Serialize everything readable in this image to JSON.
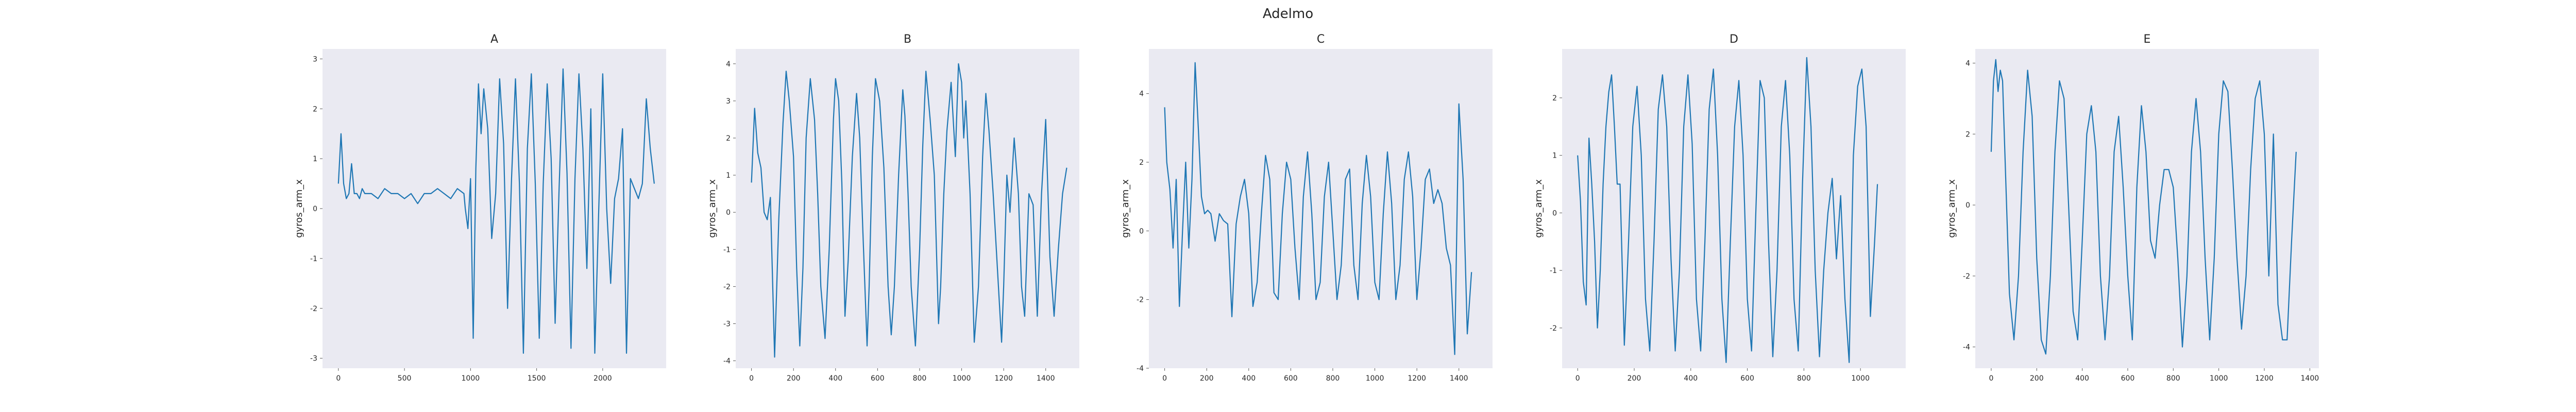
{
  "figure": {
    "suptitle": "Adelmo"
  },
  "chart_data": [
    {
      "type": "line",
      "title": "A",
      "xlabel": "",
      "ylabel": "gyros_arm_x",
      "xlim": [
        -120,
        2480
      ],
      "ylim": [
        -3.2,
        3.2
      ],
      "xticks": [
        0,
        500,
        1000,
        1500,
        2000
      ],
      "yticks": [
        -3,
        -2,
        -1,
        0,
        1,
        2,
        3
      ],
      "grid": false,
      "series": [
        {
          "color": "#1f77b4",
          "x": [
            0,
            20,
            40,
            60,
            80,
            100,
            120,
            140,
            160,
            180,
            200,
            250,
            300,
            350,
            400,
            450,
            500,
            550,
            600,
            650,
            700,
            750,
            800,
            850,
            900,
            950,
            960,
            980,
            1000,
            1020,
            1040,
            1060,
            1080,
            1100,
            1130,
            1160,
            1190,
            1220,
            1250,
            1280,
            1310,
            1340,
            1370,
            1400,
            1430,
            1460,
            1490,
            1520,
            1550,
            1580,
            1610,
            1640,
            1670,
            1700,
            1730,
            1760,
            1790,
            1820,
            1850,
            1880,
            1910,
            1940,
            1970,
            2000,
            2030,
            2060,
            2090,
            2120,
            2150,
            2180,
            2210,
            2240,
            2270,
            2300,
            2330,
            2360,
            2390
          ],
          "y": [
            0.5,
            1.5,
            0.5,
            0.2,
            0.3,
            0.9,
            0.3,
            0.3,
            0.2,
            0.4,
            0.3,
            0.3,
            0.2,
            0.4,
            0.3,
            0.3,
            0.2,
            0.3,
            0.1,
            0.3,
            0.3,
            0.4,
            0.3,
            0.2,
            0.4,
            0.3,
            0.0,
            -0.4,
            0.6,
            -2.6,
            0.8,
            2.5,
            1.5,
            2.4,
            1.6,
            -0.6,
            0.3,
            2.6,
            1.3,
            -2.0,
            0.6,
            2.6,
            0.5,
            -2.9,
            1.2,
            2.7,
            0.5,
            -2.6,
            0.5,
            2.5,
            1.0,
            -2.3,
            0.4,
            2.8,
            0.7,
            -2.8,
            0.6,
            2.7,
            1.2,
            -1.2,
            2.0,
            -2.9,
            0.0,
            2.7,
            0.0,
            -1.5,
            0.2,
            0.6,
            1.6,
            -2.9,
            0.6,
            0.4,
            0.2,
            0.5,
            2.2,
            1.2,
            0.5
          ]
        }
      ]
    },
    {
      "type": "line",
      "title": "B",
      "xlabel": "",
      "ylabel": "gyros_arm_x",
      "xlim": [
        -75,
        1560
      ],
      "ylim": [
        -4.2,
        4.4
      ],
      "xticks": [
        0,
        200,
        400,
        600,
        800,
        1000,
        1200,
        1400
      ],
      "yticks": [
        -4,
        -3,
        -2,
        -1,
        0,
        1,
        2,
        3,
        4
      ],
      "grid": false,
      "series": [
        {
          "color": "#1f77b4",
          "x": [
            0,
            15,
            30,
            45,
            60,
            75,
            90,
            110,
            130,
            150,
            165,
            180,
            200,
            215,
            230,
            245,
            260,
            280,
            300,
            315,
            330,
            350,
            370,
            390,
            400,
            415,
            430,
            445,
            460,
            480,
            500,
            515,
            530,
            550,
            560,
            575,
            590,
            610,
            630,
            650,
            665,
            680,
            700,
            720,
            730,
            745,
            760,
            780,
            800,
            815,
            830,
            850,
            870,
            890,
            900,
            915,
            930,
            950,
            970,
            985,
            1000,
            1010,
            1020,
            1040,
            1060,
            1080,
            1100,
            1115,
            1130,
            1150,
            1170,
            1190,
            1200,
            1215,
            1230,
            1250,
            1270,
            1285,
            1300,
            1320,
            1340,
            1360,
            1380,
            1400,
            1420,
            1440,
            1460,
            1480,
            1500
          ],
          "y": [
            0.8,
            2.8,
            1.6,
            1.2,
            0.0,
            -0.2,
            0.4,
            -3.9,
            -0.2,
            2.4,
            3.8,
            3.0,
            1.5,
            -1.5,
            -3.6,
            -1.5,
            2.0,
            3.6,
            2.5,
            0.5,
            -2.0,
            -3.4,
            -1.0,
            2.5,
            3.6,
            3.0,
            0.8,
            -2.8,
            -1.3,
            1.5,
            3.2,
            2.0,
            -0.5,
            -3.6,
            -2.0,
            1.5,
            3.6,
            3.0,
            1.2,
            -2.0,
            -3.3,
            -2.0,
            1.0,
            3.3,
            2.6,
            0.5,
            -2.0,
            -3.6,
            -1.0,
            1.8,
            3.8,
            2.5,
            1.0,
            -3.0,
            -2.0,
            0.5,
            2.2,
            3.5,
            1.5,
            4.0,
            3.5,
            2.0,
            3.0,
            0.5,
            -3.5,
            -2.0,
            1.5,
            3.2,
            2.2,
            0.5,
            -1.5,
            -3.5,
            -2.0,
            1.0,
            0.0,
            2.0,
            0.5,
            -2.0,
            -2.8,
            0.5,
            0.2,
            -2.8,
            0.5,
            2.5,
            -1.2,
            -2.8,
            -1.0,
            0.5,
            1.2
          ]
        }
      ]
    },
    {
      "type": "line",
      "title": "C",
      "xlabel": "",
      "ylabel": "gyros_arm_x",
      "xlim": [
        -75,
        1560
      ],
      "ylim": [
        -4.0,
        5.3
      ],
      "xticks": [
        0,
        200,
        400,
        600,
        800,
        1000,
        1200,
        1400
      ],
      "yticks": [
        -4,
        -2,
        0,
        2,
        4
      ],
      "grid": false,
      "series": [
        {
          "color": "#1f77b4",
          "x": [
            0,
            10,
            25,
            40,
            55,
            70,
            85,
            100,
            115,
            130,
            145,
            160,
            175,
            190,
            205,
            220,
            240,
            260,
            280,
            300,
            320,
            340,
            360,
            380,
            400,
            420,
            440,
            460,
            480,
            500,
            520,
            540,
            560,
            580,
            600,
            620,
            640,
            660,
            680,
            700,
            720,
            740,
            760,
            780,
            800,
            820,
            840,
            860,
            880,
            900,
            920,
            940,
            960,
            980,
            1000,
            1020,
            1040,
            1060,
            1080,
            1100,
            1120,
            1140,
            1160,
            1180,
            1200,
            1220,
            1240,
            1260,
            1280,
            1300,
            1320,
            1340,
            1360,
            1380,
            1400,
            1420,
            1440,
            1460
          ],
          "y": [
            3.6,
            2.0,
            1.2,
            -0.5,
            1.5,
            -2.2,
            0.0,
            2.0,
            -0.5,
            1.5,
            4.9,
            3.0,
            1.0,
            0.5,
            0.6,
            0.5,
            -0.3,
            0.5,
            0.3,
            0.2,
            -2.5,
            0.2,
            1.0,
            1.5,
            0.5,
            -2.2,
            -1.5,
            0.5,
            2.2,
            1.5,
            -1.8,
            -2.0,
            0.5,
            2.0,
            1.5,
            -0.5,
            -2.0,
            1.0,
            2.3,
            0.5,
            -2.0,
            -1.5,
            1.0,
            2.0,
            0.0,
            -2.0,
            -1.0,
            1.5,
            1.8,
            -1.0,
            -2.0,
            0.8,
            2.2,
            1.0,
            -1.5,
            -2.0,
            0.5,
            2.3,
            0.8,
            -2.0,
            -1.0,
            1.5,
            2.3,
            1.0,
            -2.0,
            -0.5,
            1.5,
            1.8,
            0.8,
            1.2,
            0.8,
            -0.5,
            -1.0,
            -3.6,
            3.7,
            1.5,
            -3.0,
            -1.2
          ]
        }
      ]
    },
    {
      "type": "line",
      "title": "D",
      "xlabel": "",
      "ylabel": "gyros_arm_x",
      "xlim": [
        -55,
        1160
      ],
      "ylim": [
        -2.7,
        2.85
      ],
      "xticks": [
        0,
        200,
        400,
        600,
        800,
        1000
      ],
      "yticks": [
        -2,
        -1,
        0,
        1,
        2
      ],
      "grid": false,
      "series": [
        {
          "color": "#1f77b4",
          "x": [
            0,
            10,
            20,
            30,
            40,
            50,
            60,
            70,
            80,
            90,
            100,
            110,
            120,
            130,
            140,
            150,
            165,
            180,
            195,
            210,
            225,
            240,
            255,
            270,
            285,
            300,
            315,
            330,
            345,
            360,
            375,
            390,
            405,
            420,
            435,
            450,
            465,
            480,
            495,
            510,
            525,
            540,
            555,
            570,
            585,
            600,
            615,
            630,
            645,
            660,
            675,
            690,
            705,
            720,
            735,
            750,
            765,
            780,
            795,
            810,
            825,
            840,
            855,
            870,
            885,
            900,
            915,
            930,
            945,
            960,
            975,
            990,
            1005,
            1020,
            1035,
            1050,
            1060
          ],
          "y": [
            1.0,
            0.2,
            -1.2,
            -1.6,
            1.3,
            0.5,
            -0.5,
            -2.0,
            -1.0,
            0.5,
            1.5,
            2.1,
            2.4,
            1.5,
            0.5,
            0.5,
            -2.3,
            -0.5,
            1.5,
            2.2,
            1.0,
            -1.5,
            -2.4,
            -0.5,
            1.8,
            2.4,
            1.5,
            -0.8,
            -2.4,
            -1.0,
            1.5,
            2.4,
            1.2,
            -1.5,
            -2.4,
            -0.5,
            1.8,
            2.5,
            1.0,
            -1.5,
            -2.6,
            -0.5,
            1.5,
            2.3,
            1.0,
            -1.5,
            -2.4,
            0.0,
            2.3,
            2.0,
            -0.5,
            -2.5,
            -1.0,
            1.5,
            2.3,
            1.0,
            -1.5,
            -2.4,
            0.5,
            2.7,
            1.5,
            -1.0,
            -2.5,
            -1.0,
            0.0,
            0.6,
            -0.8,
            0.3,
            -1.5,
            -2.6,
            1.0,
            2.2,
            2.5,
            1.5,
            -1.8,
            -0.5,
            0.5
          ]
        }
      ]
    },
    {
      "type": "line",
      "title": "E",
      "xlabel": "",
      "ylabel": "gyros_arm_x",
      "xlim": [
        -70,
        1440
      ],
      "ylim": [
        -4.6,
        4.4
      ],
      "xticks": [
        0,
        200,
        400,
        600,
        800,
        1000,
        1200,
        1400
      ],
      "yticks": [
        -4,
        -2,
        0,
        2,
        4
      ],
      "grid": false,
      "series": [
        {
          "color": "#1f77b4",
          "x": [
            0,
            10,
            20,
            30,
            40,
            50,
            60,
            80,
            100,
            120,
            140,
            160,
            180,
            200,
            220,
            240,
            260,
            280,
            300,
            320,
            340,
            360,
            380,
            400,
            420,
            440,
            460,
            480,
            500,
            520,
            540,
            560,
            580,
            600,
            620,
            640,
            660,
            680,
            700,
            720,
            740,
            760,
            780,
            800,
            820,
            840,
            860,
            880,
            900,
            920,
            940,
            960,
            980,
            1000,
            1020,
            1040,
            1060,
            1080,
            1100,
            1120,
            1140,
            1160,
            1180,
            1200,
            1220,
            1240,
            1260,
            1280,
            1300,
            1320,
            1340
          ],
          "y": [
            1.5,
            3.5,
            4.1,
            3.2,
            3.8,
            3.5,
            1.5,
            -2.5,
            -3.8,
            -2.0,
            1.5,
            3.8,
            2.5,
            -1.5,
            -3.8,
            -4.2,
            -2.0,
            1.5,
            3.5,
            3.0,
            0.0,
            -3.0,
            -3.8,
            -1.0,
            2.0,
            2.8,
            1.5,
            -2.0,
            -3.8,
            -2.0,
            1.5,
            2.5,
            0.5,
            -2.0,
            -3.8,
            0.5,
            2.8,
            1.5,
            -1.0,
            -1.5,
            0.0,
            1.0,
            1.0,
            0.5,
            -1.5,
            -4.0,
            -2.0,
            1.5,
            3.0,
            1.5,
            -1.5,
            -3.8,
            -1.5,
            2.0,
            3.5,
            3.2,
            1.0,
            -1.5,
            -3.5,
            -2.0,
            1.0,
            3.0,
            3.5,
            2.0,
            -2.0,
            2.0,
            -2.8,
            -3.8,
            -3.8,
            -1.0,
            1.5
          ]
        }
      ]
    }
  ]
}
